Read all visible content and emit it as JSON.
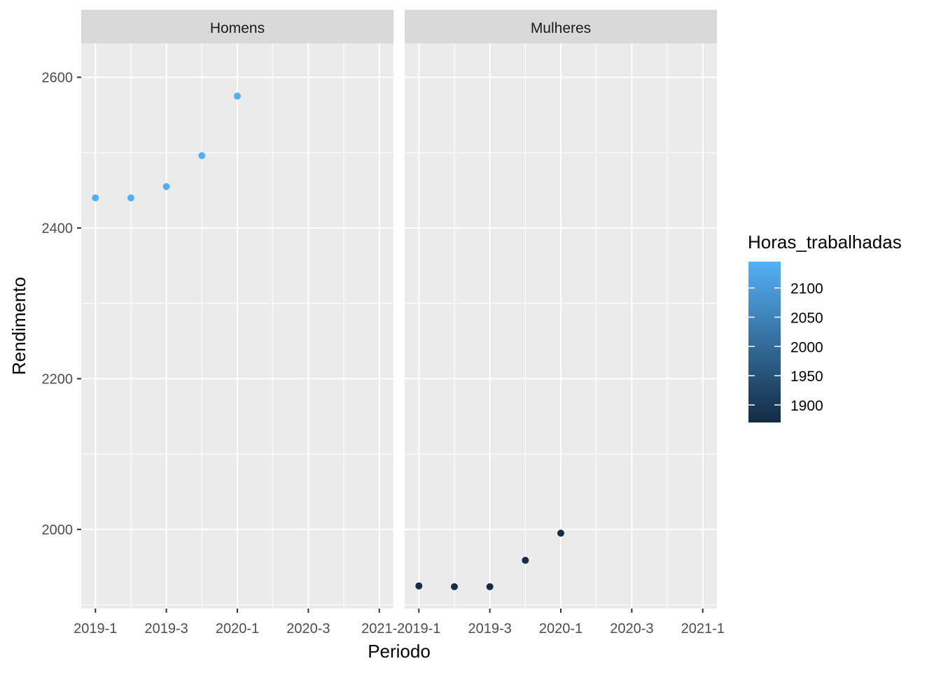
{
  "chart_data": {
    "type": "scatter",
    "xlabel": "Periodo",
    "ylabel": "Rendimento",
    "x_ticks": [
      "2019-1",
      "2019-3",
      "2020-1",
      "2020-3",
      "2021-1"
    ],
    "x_ticks_clipped": [
      "2019-1",
      "2019-3",
      "2020-1",
      "2020-3",
      "2021-1"
    ],
    "x_tick_labels_shown": [
      "2019-1",
      "2019-3",
      "2020-1",
      "2020-3",
      "2021-"
    ],
    "y_ticks": [
      2000,
      2200,
      2400,
      2600
    ],
    "ylim": [
      1895,
      2645
    ],
    "xlim_index": [
      -0.4,
      8.4
    ],
    "grid": true,
    "legend_position": "right",
    "facets": [
      {
        "label": "Homens",
        "points": [
          {
            "x": "2019-1",
            "y": 2440,
            "horas": 2140
          },
          {
            "x": "2019-2",
            "y": 2440,
            "horas": 2140
          },
          {
            "x": "2019-3",
            "y": 2455,
            "horas": 2140
          },
          {
            "x": "2019-4",
            "y": 2496,
            "horas": 2140
          },
          {
            "x": "2020-1",
            "y": 2575,
            "horas": 2140
          }
        ]
      },
      {
        "label": "Mulheres",
        "points": [
          {
            "x": "2019-1",
            "y": 1925,
            "horas": 1875
          },
          {
            "x": "2019-2",
            "y": 1924,
            "horas": 1875
          },
          {
            "x": "2019-3",
            "y": 1924,
            "horas": 1875
          },
          {
            "x": "2019-4",
            "y": 1959,
            "horas": 1875
          },
          {
            "x": "2020-1",
            "y": 1995,
            "horas": 1875
          }
        ]
      }
    ],
    "all_periods": [
      "2019-1",
      "2019-2",
      "2019-3",
      "2019-4",
      "2020-1",
      "2020-2",
      "2020-3",
      "2020-4",
      "2021-1"
    ],
    "legend": {
      "title": "Horas_trabalhadas",
      "breaks": [
        2100,
        2050,
        2000,
        1950,
        1900
      ],
      "range": [
        1870,
        2145
      ],
      "color_low": "#132B43",
      "color_high": "#56B1F7"
    },
    "panel_background": "#ebebeb",
    "strip_background": "#d9d9d9",
    "grid_color": "#ffffff"
  }
}
